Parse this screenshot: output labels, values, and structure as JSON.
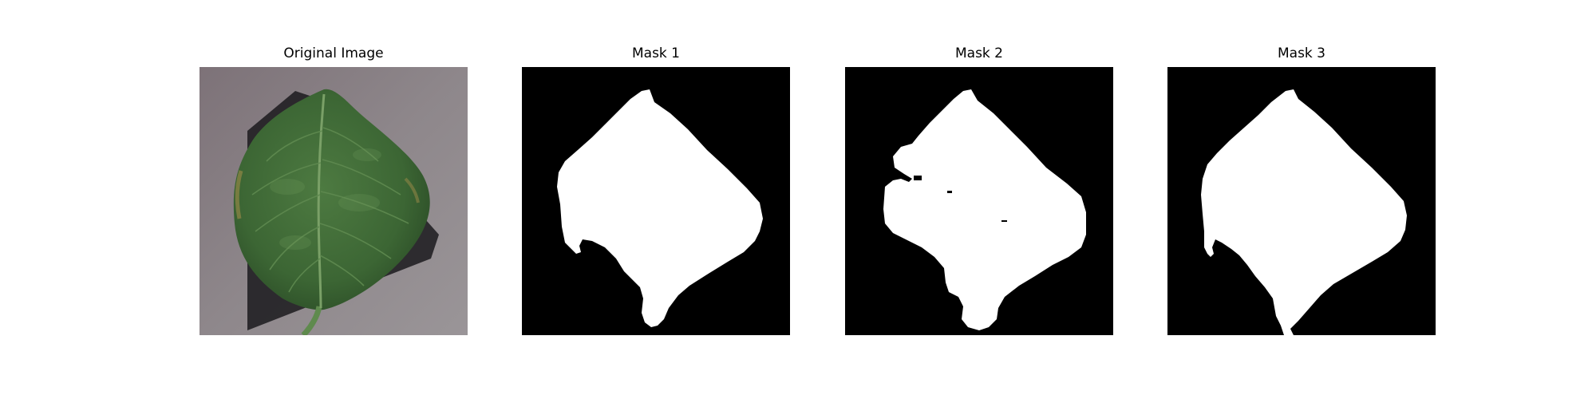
{
  "figure": {
    "panels": [
      {
        "title": "Original Image",
        "kind": "photo",
        "content": "leaf"
      },
      {
        "title": "Mask 1",
        "kind": "mask",
        "content": "leaf-mask"
      },
      {
        "title": "Mask 2",
        "kind": "mask",
        "content": "leaf-mask"
      },
      {
        "title": "Mask 3",
        "kind": "mask",
        "content": "leaf-mask"
      }
    ],
    "colors": {
      "mask_background": "#000000",
      "mask_foreground": "#ffffff",
      "photo_background": "#8c8488",
      "leaf": "#3f6b36",
      "leaf_dark": "#2c4f28",
      "vein": "#7aa067",
      "shadow": "#1b1a1d"
    }
  }
}
